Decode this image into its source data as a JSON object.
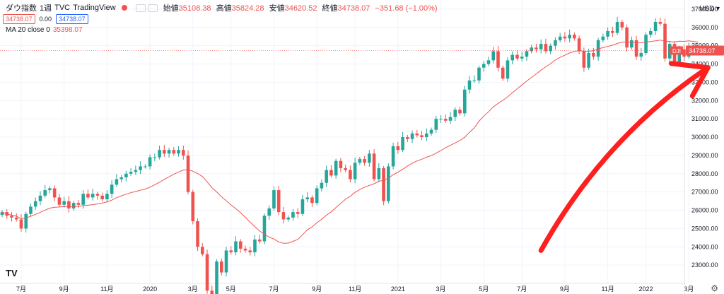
{
  "header": {
    "symbol": "ダウ指数",
    "interval": "1週",
    "source": "TVC",
    "provider": "TradingView",
    "ohlc": [
      {
        "label": "始値",
        "value": "35108.38"
      },
      {
        "label": "高値",
        "value": "35824.28"
      },
      {
        "label": "安値",
        "value": "34620.52"
      },
      {
        "label": "終値",
        "value": "34738.07"
      }
    ],
    "change": "−351.68 (−1.00%)",
    "bid": "34738.07",
    "spread": "0.00",
    "ask": "34738.07"
  },
  "indicator": {
    "label": "MA 20 close 0",
    "value": "35398.07"
  },
  "currency": "USD",
  "last_price_label": "34738.07",
  "symbol_tag": "DJI",
  "logo_text": "TV",
  "gear_glyph": "⚙",
  "colors": {
    "up": "#26a69a",
    "down": "#ef5350",
    "ma": "#ef5350",
    "arrow": "#ff1f1f",
    "grid": "#f0f3fa"
  },
  "chart_data": {
    "type": "candlestick",
    "interval": "1週",
    "y_axis": {
      "min": 22000,
      "max": 37500,
      "step": 1000,
      "position": "right"
    },
    "x_ticks": [
      {
        "label": "7月",
        "week": 4
      },
      {
        "label": "9月",
        "week": 13
      },
      {
        "label": "11月",
        "week": 22
      },
      {
        "label": "2020",
        "week": 31
      },
      {
        "label": "3月",
        "week": 40
      },
      {
        "label": "5月",
        "week": 48
      },
      {
        "label": "7月",
        "week": 57
      },
      {
        "label": "9月",
        "week": 66
      },
      {
        "label": "11月",
        "week": 74
      },
      {
        "label": "2021",
        "week": 83
      },
      {
        "label": "3月",
        "week": 92
      },
      {
        "label": "5月",
        "week": 101
      },
      {
        "label": "7月",
        "week": 109
      },
      {
        "label": "9月",
        "week": 118
      },
      {
        "label": "11月",
        "week": 127
      },
      {
        "label": "2022",
        "week": 135
      },
      {
        "label": "3月",
        "week": 144
      }
    ],
    "closes": [
      25900,
      25700,
      25600,
      25500,
      25000,
      25800,
      26200,
      26500,
      26800,
      27100,
      27200,
      26700,
      26300,
      26500,
      26100,
      26400,
      26300,
      26900,
      26700,
      26900,
      26800,
      26600,
      26900,
      27400,
      27700,
      27800,
      28000,
      28100,
      28200,
      28400,
      28400,
      28900,
      28900,
      29300,
      29100,
      29300,
      29100,
      29300,
      28990,
      27000,
      25400,
      24000,
      23600,
      21600,
      21300,
      23200,
      22600,
      23800,
      23700,
      24300,
      23900,
      23800,
      23700,
      24400,
      24300,
      25700,
      26100,
      27100,
      25900,
      25500,
      25600,
      25900,
      25800,
      26600,
      26700,
      26400,
      27200,
      27500,
      28200,
      27900,
      28700,
      28300,
      28200,
      27700,
      28600,
      28800,
      28600,
      29100,
      27700,
      28300,
      26500,
      28400,
      29500,
      29300,
      30000,
      29900,
      30200,
      30100,
      30000,
      30200,
      30400,
      31000,
      31000,
      30900,
      31100,
      31500,
      31300,
      32600,
      33100,
      33100,
      33800,
      34000,
      34200,
      34700,
      33800,
      33200,
      34200,
      34500,
      34300,
      34400,
      34700,
      34900,
      34800,
      35100,
      34700,
      35000,
      35300,
      35500,
      35400,
      35600,
      35400,
      34700,
      33800,
      34600,
      34400,
      35300,
      35500,
      35800,
      35700,
      36300,
      36000,
      34900,
      35300,
      34400,
      34600,
      35600,
      35800,
      36300,
      36200,
      34300,
      35100,
      34100,
      34800,
      34400,
      34900,
      34700,
      34738
    ],
    "ma20_last": 35398.07,
    "annotations": [
      {
        "type": "arrow",
        "color": "#ff1f1f",
        "from": {
          "week": 113,
          "price": 23800
        },
        "to": {
          "week": 148,
          "price": 33800
        },
        "style": "hand-drawn"
      }
    ]
  }
}
